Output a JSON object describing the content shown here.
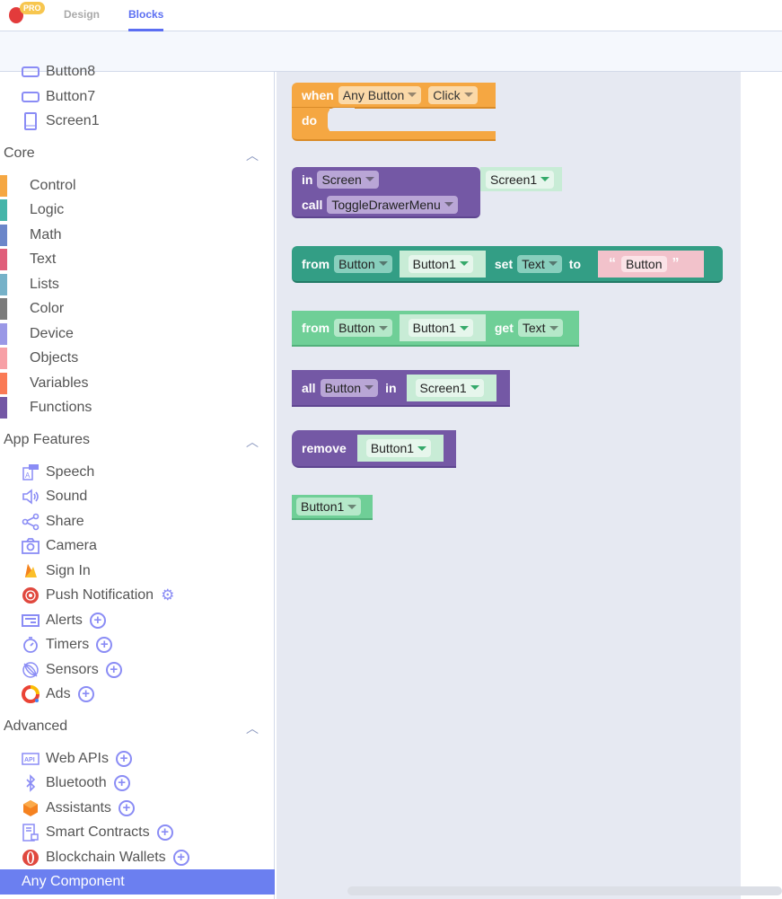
{
  "header": {
    "pro_badge": "PRO",
    "tabs": [
      {
        "label": "Design",
        "active": false
      },
      {
        "label": "Blocks",
        "active": true
      }
    ]
  },
  "colors": {
    "accent": "#5b6ef2",
    "control": "#f5a742",
    "logic": "#45b5a9",
    "math": "#6b86c9",
    "text": "#e05f7b",
    "lists": "#76b1c8",
    "color": "#7b7b7b",
    "device": "#9a98e6",
    "objects": "#f7a0a6",
    "variables": "#fa7a55",
    "functions": "#7458a5",
    "selected": "#6b7ff0"
  },
  "sidebar": {
    "components": [
      {
        "label": "Button8",
        "icon": "button-icon"
      },
      {
        "label": "Button7",
        "icon": "button-icon"
      },
      {
        "label": "Screen1",
        "icon": "phone-icon"
      }
    ],
    "core": {
      "title": "Core",
      "items": [
        {
          "label": "Control",
          "color": "#f5a742"
        },
        {
          "label": "Logic",
          "color": "#45b5a9"
        },
        {
          "label": "Math",
          "color": "#6b86c9"
        },
        {
          "label": "Text",
          "color": "#e05f7b"
        },
        {
          "label": "Lists",
          "color": "#76b1c8"
        },
        {
          "label": "Color",
          "color": "#7b7b7b"
        },
        {
          "label": "Device",
          "color": "#9a98e6"
        },
        {
          "label": "Objects",
          "color": "#f7a0a6"
        },
        {
          "label": "Variables",
          "color": "#fa7a55"
        },
        {
          "label": "Functions",
          "color": "#7458a5"
        }
      ]
    },
    "app_features": {
      "title": "App Features",
      "items": [
        {
          "label": "Speech",
          "icon": "speech-icon"
        },
        {
          "label": "Sound",
          "icon": "speaker-icon"
        },
        {
          "label": "Share",
          "icon": "share-icon"
        },
        {
          "label": "Camera",
          "icon": "camera-icon"
        },
        {
          "label": "Sign In",
          "icon": "firebase-icon"
        },
        {
          "label": "Push Notification",
          "icon": "push-icon",
          "extra": "gear"
        },
        {
          "label": "Alerts",
          "icon": "alert-icon",
          "extra": "plus"
        },
        {
          "label": "Timers",
          "icon": "timer-icon",
          "extra": "plus"
        },
        {
          "label": "Sensors",
          "icon": "sensor-icon",
          "extra": "plus"
        },
        {
          "label": "Ads",
          "icon": "ads-icon",
          "extra": "plus"
        }
      ]
    },
    "advanced": {
      "title": "Advanced",
      "items": [
        {
          "label": "Web APIs",
          "icon": "api-icon",
          "extra": "plus"
        },
        {
          "label": "Bluetooth",
          "icon": "bluetooth-icon",
          "extra": "plus"
        },
        {
          "label": "Assistants",
          "icon": "cube-icon",
          "extra": "plus"
        },
        {
          "label": "Smart Contracts",
          "icon": "contract-icon",
          "extra": "plus"
        },
        {
          "label": "Blockchain Wallets",
          "icon": "wallet-icon",
          "extra": "plus"
        },
        {
          "label": "Any Component",
          "selected": true
        }
      ]
    }
  },
  "blocks": {
    "b1": {
      "when": "when",
      "component": "Any Button",
      "event": "Click",
      "do": "do"
    },
    "b2": {
      "in": "in",
      "component": "Screen",
      "call": "call",
      "method": "ToggleDrawerMenu",
      "target": "Screen1"
    },
    "b3": {
      "from": "from",
      "component": "Button",
      "target": "Button1",
      "set": "set",
      "prop": "Text",
      "to": "to",
      "open_quote": "“",
      "value": "Button",
      "close_quote": "”"
    },
    "b4": {
      "from": "from",
      "component": "Button",
      "target": "Button1",
      "get": "get",
      "prop": "Text"
    },
    "b5": {
      "all": "all",
      "component": "Button",
      "in": "in",
      "target": "Screen1"
    },
    "b6": {
      "remove": "remove",
      "target": "Button1"
    },
    "b7": {
      "target": "Button1"
    }
  }
}
